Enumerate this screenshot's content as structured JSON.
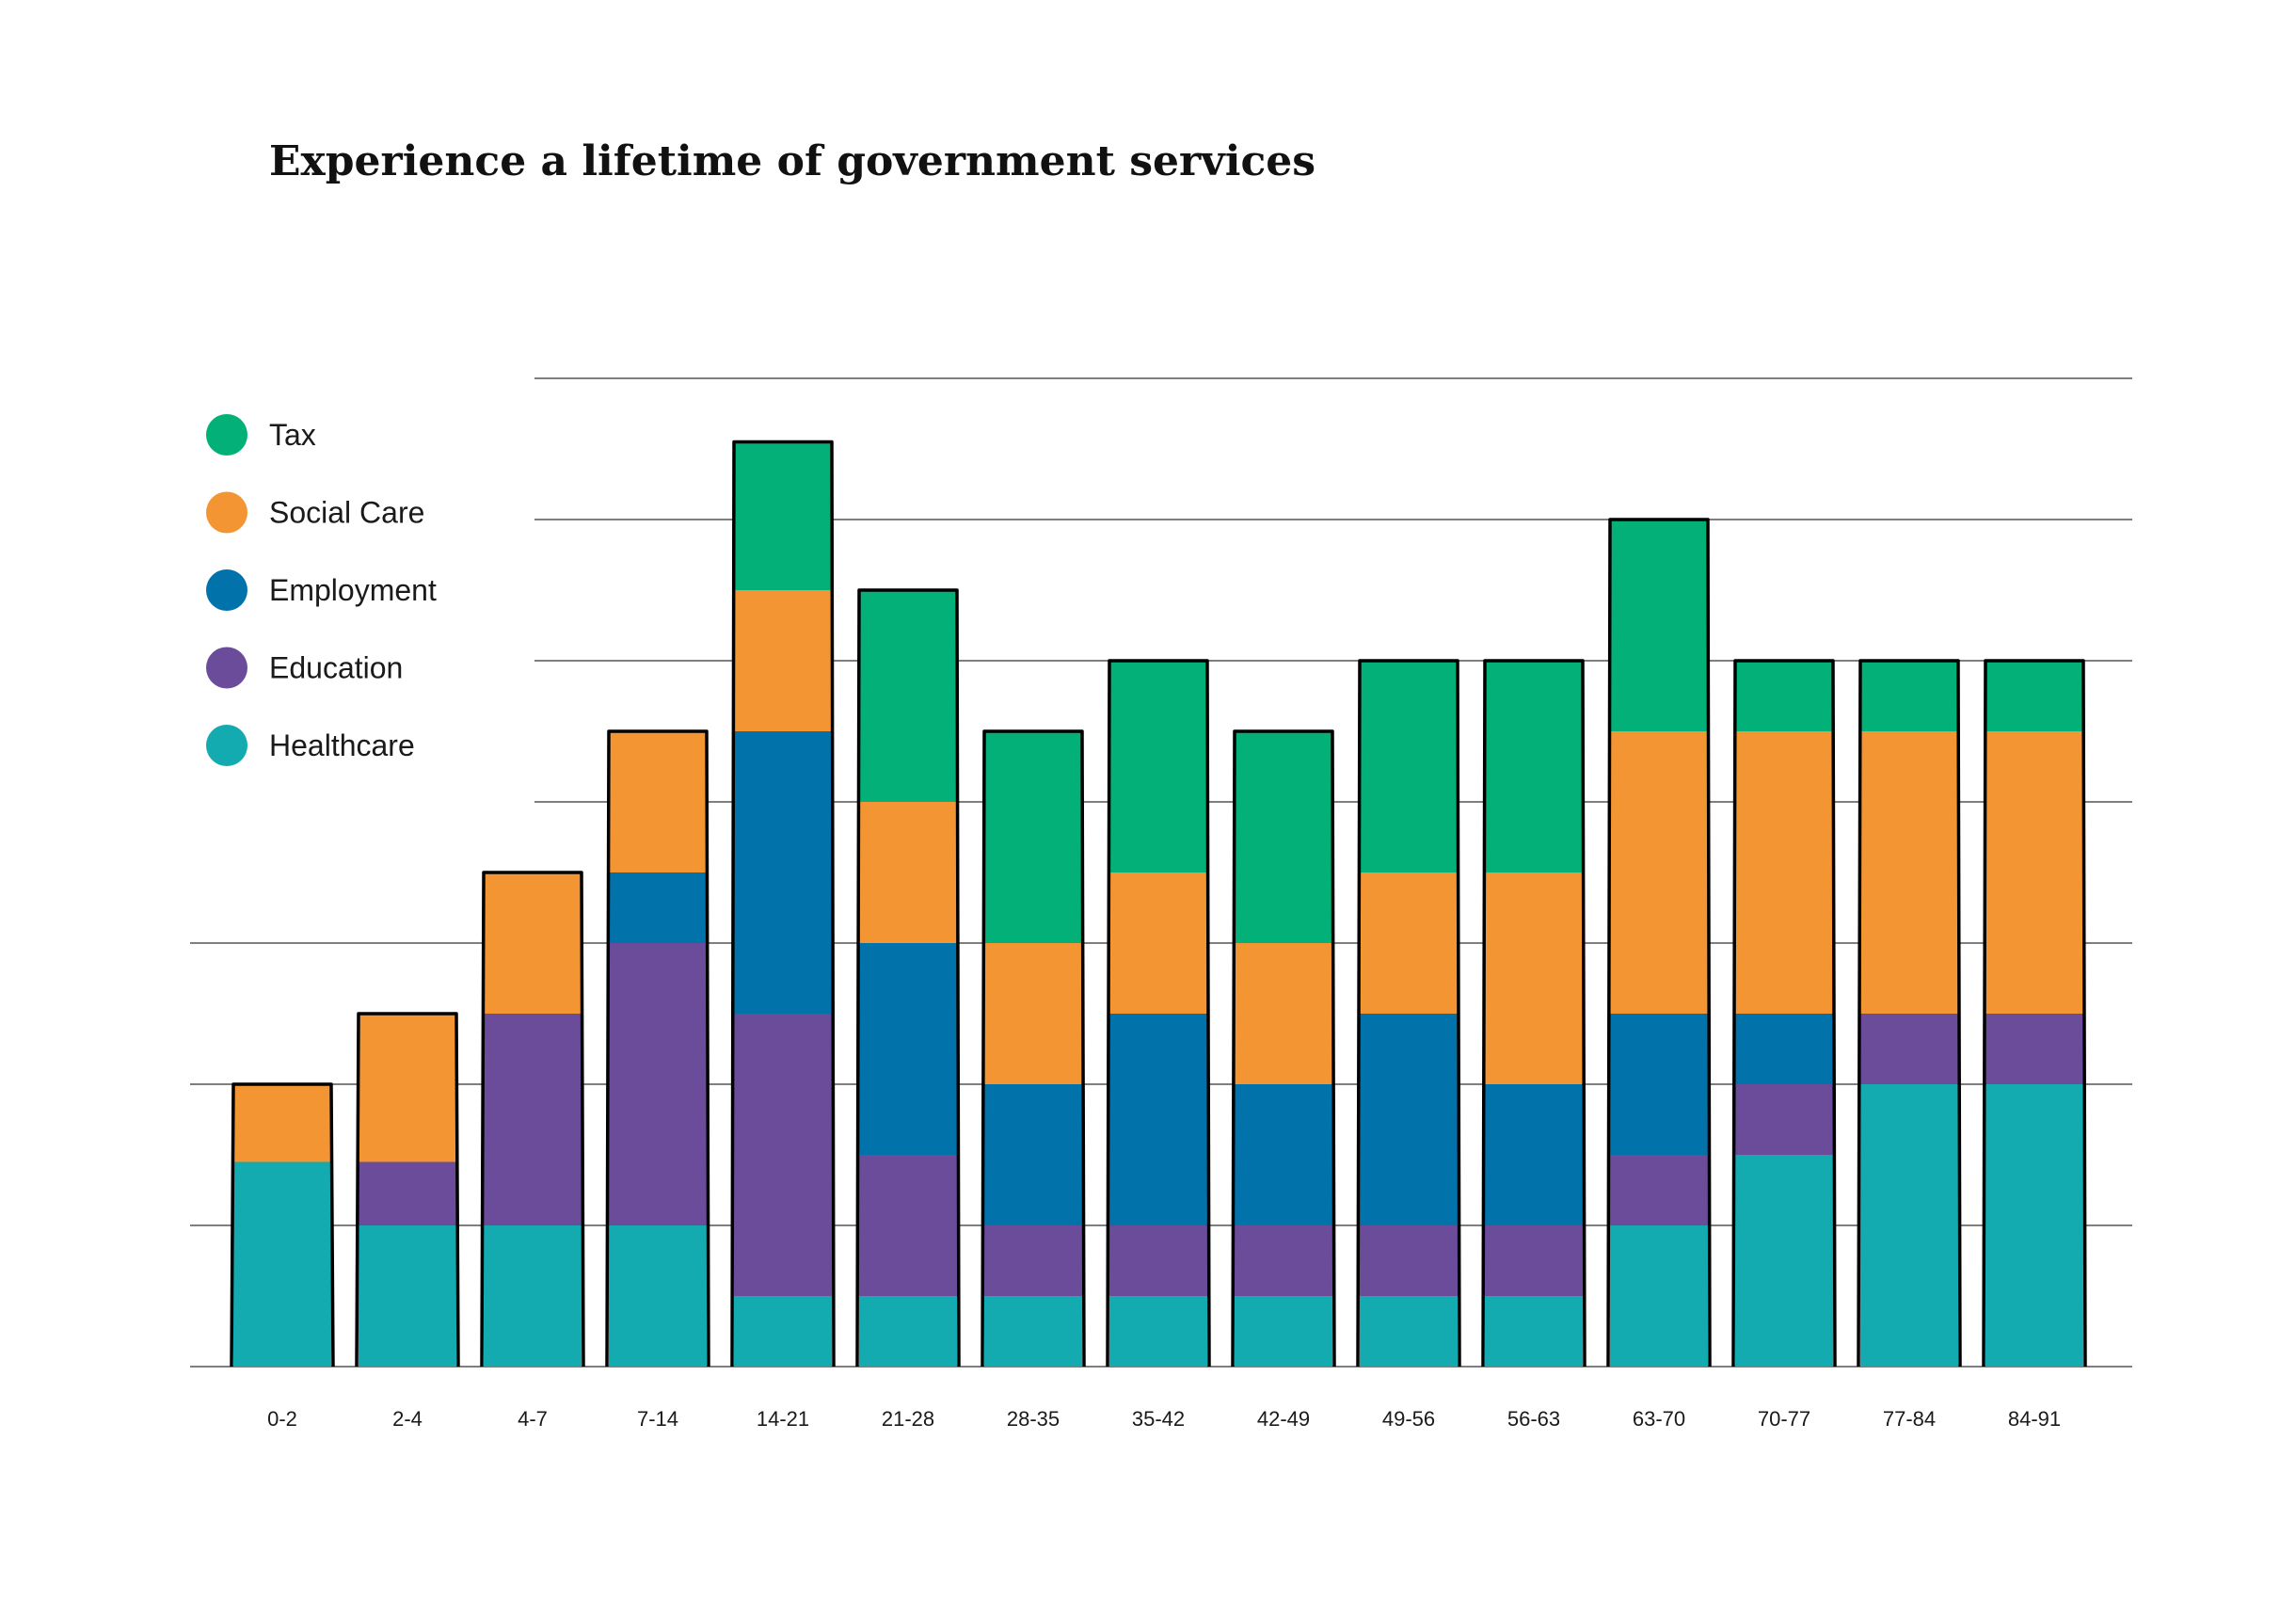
{
  "chart_data": {
    "type": "bar",
    "stacked": true,
    "title": "Experience a lifetime of government services",
    "xlabel": "",
    "ylabel": "",
    "ylim": [
      0,
      7
    ],
    "grid": true,
    "legend_position": "top-left",
    "categories": [
      "0-2",
      "2-4",
      "4-7",
      "7-14",
      "14-21",
      "21-28",
      "28-35",
      "35-42",
      "42-49",
      "49-56",
      "56-63",
      "63-70",
      "70-77",
      "77-84",
      "84-91"
    ],
    "series": [
      {
        "name": "Healthcare",
        "color": "#14abb0",
        "values": [
          1.45,
          1,
          1,
          1,
          0.5,
          0.5,
          0.5,
          0.5,
          0.5,
          0.5,
          0.5,
          1,
          1.5,
          2,
          2
        ]
      },
      {
        "name": "Education",
        "color": "#6b4c9a",
        "values": [
          0,
          0.45,
          1.5,
          2,
          2,
          1,
          0.5,
          0.5,
          0.5,
          0.5,
          0.5,
          0.5,
          0.5,
          0.5,
          0.5
        ]
      },
      {
        "name": "Employment",
        "color": "#0273aa",
        "values": [
          0,
          0,
          0,
          0.5,
          2,
          1.5,
          1,
          1.5,
          1,
          1.5,
          1,
          1,
          0.5,
          0,
          0
        ]
      },
      {
        "name": "Social Care",
        "color": "#f39532",
        "values": [
          0.55,
          1.05,
          1,
          1,
          1,
          1,
          1,
          1,
          1,
          1,
          1.5,
          2,
          2,
          2,
          2
        ]
      },
      {
        "name": "Tax",
        "color": "#03b077",
        "values": [
          0,
          0,
          0,
          0,
          1.05,
          1.5,
          1.5,
          1.5,
          1.5,
          1.5,
          1.5,
          1.5,
          0.5,
          0.5,
          0.5
        ]
      }
    ],
    "legend_order": [
      "Tax",
      "Social Care",
      "Employment",
      "Education",
      "Healthcare"
    ]
  }
}
